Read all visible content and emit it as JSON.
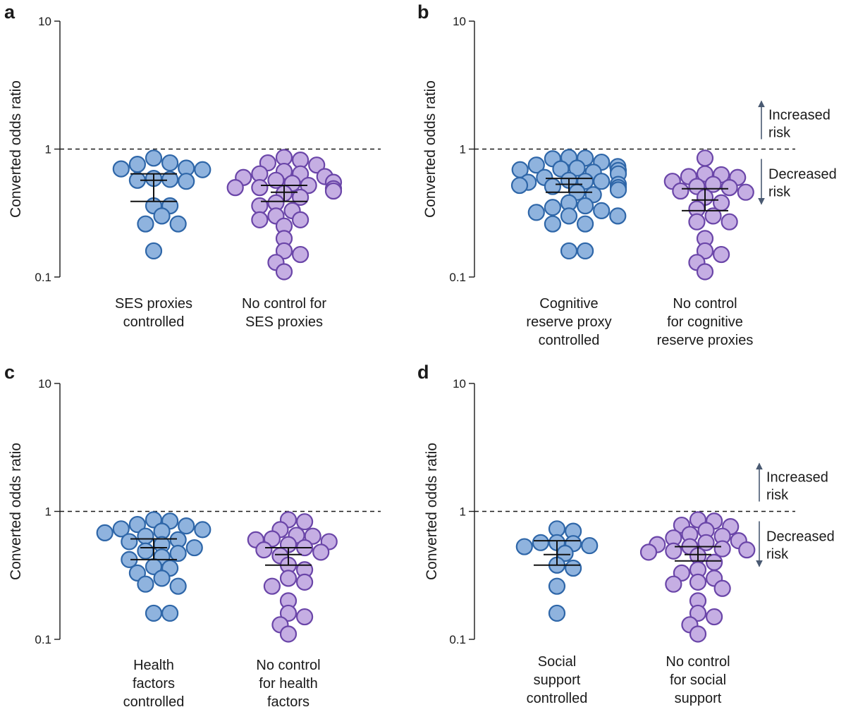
{
  "colors": {
    "blue_fill": "#8fb3de",
    "blue_edge": "#2e66a8",
    "purple_fill": "#c5aee3",
    "purple_edge": "#6a45a8",
    "axis": "#1a1a1a",
    "annot_arrow": "#4a5a72"
  },
  "chart_data": [
    {
      "panel": "a",
      "type": "scatter",
      "yscale": "log",
      "ylim": [
        0.1,
        10
      ],
      "yticks": [
        {
          "v": 0.1,
          "t": "0.1"
        },
        {
          "v": 1,
          "t": "1"
        },
        {
          "v": 10,
          "t": "10"
        }
      ],
      "ylabel": "Converted odds ratio",
      "reference_line": 1,
      "categories": [
        {
          "label": [
            "SES proxies",
            "controlled"
          ],
          "color": "blue",
          "mean": 0.57,
          "ci": [
            0.39,
            0.64
          ],
          "points": [
            0.71,
            0.78,
            0.85,
            0.76,
            0.7,
            0.69,
            0.58,
            0.56,
            0.57,
            0.59,
            0.36,
            0.36,
            0.3,
            0.26,
            0.26,
            0.16
          ]
        },
        {
          "label": [
            "No control for",
            "SES proxies"
          ],
          "color": "purple",
          "mean": 0.46,
          "ci": [
            0.39,
            0.52
          ],
          "points": [
            0.86,
            0.82,
            0.78,
            0.75,
            0.67,
            0.64,
            0.64,
            0.61,
            0.6,
            0.57,
            0.54,
            0.55,
            0.52,
            0.5,
            0.5,
            0.49,
            0.47,
            0.45,
            0.42,
            0.38,
            0.36,
            0.33,
            0.3,
            0.28,
            0.28,
            0.25,
            0.2,
            0.16,
            0.15,
            0.13,
            0.11
          ]
        }
      ],
      "annotations": []
    },
    {
      "panel": "b",
      "type": "scatter",
      "yscale": "log",
      "ylim": [
        0.1,
        10
      ],
      "yticks": [
        {
          "v": 0.1,
          "t": "0.1"
        },
        {
          "v": 1,
          "t": "1"
        },
        {
          "v": 10,
          "t": "10"
        }
      ],
      "ylabel": "Converted odds ratio",
      "reference_line": 1,
      "categories": [
        {
          "label": [
            "Cognitive",
            "reserve proxy",
            "controlled"
          ],
          "color": "blue",
          "mean": 0.53,
          "ci": [
            0.46,
            0.59
          ],
          "points": [
            0.86,
            0.85,
            0.84,
            0.79,
            0.75,
            0.73,
            0.71,
            0.7,
            0.69,
            0.68,
            0.66,
            0.64,
            0.6,
            0.57,
            0.56,
            0.56,
            0.55,
            0.53,
            0.52,
            0.51,
            0.5,
            0.48,
            0.46,
            0.44,
            0.38,
            0.36,
            0.35,
            0.33,
            0.32,
            0.3,
            0.3,
            0.26,
            0.26,
            0.16,
            0.16
          ]
        },
        {
          "label": [
            "No control",
            "for cognitive",
            "reserve proxies"
          ],
          "color": "purple",
          "mean": 0.4,
          "ci": [
            0.33,
            0.49
          ],
          "points": [
            0.85,
            0.64,
            0.63,
            0.61,
            0.6,
            0.56,
            0.53,
            0.51,
            0.5,
            0.47,
            0.46,
            0.42,
            0.38,
            0.34,
            0.3,
            0.27,
            0.27,
            0.2,
            0.16,
            0.15,
            0.13,
            0.11
          ]
        }
      ],
      "annotations": [
        {
          "direction": "up",
          "label": [
            "Increased",
            "risk"
          ]
        },
        {
          "direction": "down",
          "label": [
            "Decreased",
            "risk"
          ]
        }
      ]
    },
    {
      "panel": "c",
      "type": "scatter",
      "yscale": "log",
      "ylim": [
        0.1,
        10
      ],
      "yticks": [
        {
          "v": 0.1,
          "t": "0.1"
        },
        {
          "v": 1,
          "t": "1"
        },
        {
          "v": 10,
          "t": "10"
        }
      ],
      "ylabel": "Converted odds ratio",
      "reference_line": 1,
      "categories": [
        {
          "label": [
            "Health",
            "factors",
            "controlled"
          ],
          "color": "blue",
          "mean": 0.52,
          "ci": [
            0.42,
            0.61
          ],
          "points": [
            0.86,
            0.84,
            0.79,
            0.77,
            0.73,
            0.72,
            0.7,
            0.68,
            0.64,
            0.6,
            0.58,
            0.55,
            0.52,
            0.49,
            0.47,
            0.44,
            0.42,
            0.37,
            0.36,
            0.33,
            0.3,
            0.27,
            0.26,
            0.16,
            0.16
          ]
        },
        {
          "label": [
            "No control",
            "for health",
            "factors"
          ],
          "color": "purple",
          "mean": 0.46,
          "ci": [
            0.38,
            0.52
          ],
          "points": [
            0.86,
            0.83,
            0.72,
            0.65,
            0.64,
            0.61,
            0.6,
            0.58,
            0.55,
            0.52,
            0.5,
            0.48,
            0.45,
            0.38,
            0.35,
            0.3,
            0.28,
            0.26,
            0.2,
            0.16,
            0.15,
            0.13,
            0.11
          ]
        }
      ],
      "annotations": []
    },
    {
      "panel": "d",
      "type": "scatter",
      "yscale": "log",
      "ylim": [
        0.1,
        10
      ],
      "yticks": [
        {
          "v": 0.1,
          "t": "0.1"
        },
        {
          "v": 1,
          "t": "1"
        },
        {
          "v": 10,
          "t": "10"
        }
      ],
      "ylabel": "Converted odds ratio",
      "reference_line": 1,
      "categories": [
        {
          "label": [
            "Social",
            "support",
            "controlled"
          ],
          "color": "blue",
          "mean": 0.46,
          "ci": [
            0.38,
            0.59
          ],
          "points": [
            0.73,
            0.7,
            0.57,
            0.56,
            0.57,
            0.54,
            0.53,
            0.47,
            0.38,
            0.36,
            0.26,
            0.16
          ]
        },
        {
          "label": [
            "No control",
            "for social",
            "support"
          ],
          "color": "purple",
          "mean": 0.46,
          "ci": [
            0.41,
            0.53
          ],
          "points": [
            0.86,
            0.84,
            0.78,
            0.76,
            0.71,
            0.66,
            0.64,
            0.62,
            0.59,
            0.57,
            0.55,
            0.53,
            0.51,
            0.5,
            0.49,
            0.48,
            0.45,
            0.4,
            0.35,
            0.33,
            0.3,
            0.28,
            0.27,
            0.25,
            0.2,
            0.16,
            0.15,
            0.13,
            0.11
          ]
        }
      ],
      "annotations": [
        {
          "direction": "up",
          "label": [
            "Increased",
            "risk"
          ]
        },
        {
          "direction": "down",
          "label": [
            "Decreased",
            "risk"
          ]
        }
      ]
    }
  ]
}
